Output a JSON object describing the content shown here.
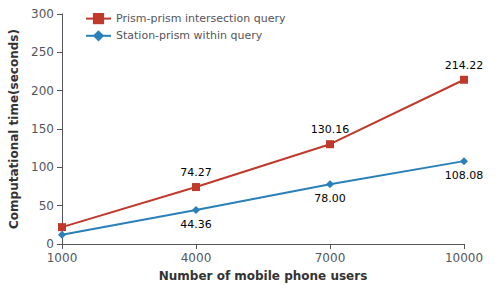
{
  "chart_data": {
    "type": "line",
    "x": [
      1000,
      4000,
      7000,
      10000
    ],
    "series": [
      {
        "name": "Prism-prism intersection query",
        "color": "#c0392b",
        "marker": "square",
        "values": [
          22,
          74.27,
          130.16,
          214.22
        ],
        "value_labels": [
          null,
          "74.27",
          "130.16",
          "214.22"
        ]
      },
      {
        "name": "Station-prism within query",
        "color": "#2980b9",
        "marker": "diamond",
        "values": [
          12,
          44.36,
          78.0,
          108.08
        ],
        "value_labels": [
          null,
          "44.36",
          "78.00",
          "108.08"
        ]
      }
    ],
    "xlabel": "Number of mobile phone users",
    "ylabel": "Computational time(seconds)",
    "xlim": [
      1000,
      10000
    ],
    "xticks": [
      1000,
      4000,
      7000,
      10000
    ],
    "ylim": [
      0,
      300
    ],
    "yticks": [
      0,
      50,
      100,
      150,
      200,
      250,
      300
    ],
    "legend": "upper left",
    "data_labels": true,
    "grid": false
  }
}
